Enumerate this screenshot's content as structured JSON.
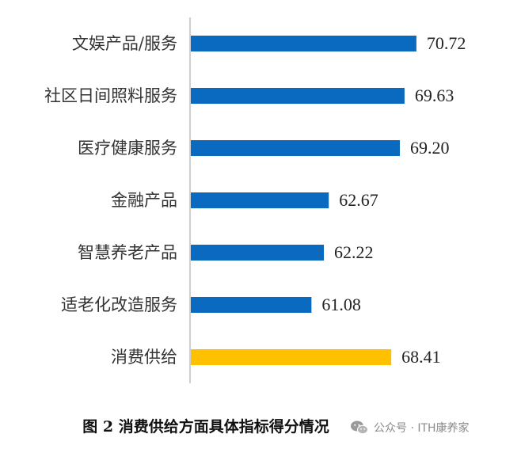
{
  "chart_data": {
    "type": "bar",
    "orientation": "horizontal",
    "categories": [
      "文娱产品/服务",
      "社区日间照料服务",
      "医疗健康服务",
      "金融产品",
      "智慧养老产品",
      "适老化改造服务",
      "消费供给"
    ],
    "values": [
      70.72,
      69.63,
      69.2,
      62.67,
      62.22,
      61.08,
      68.41
    ],
    "value_labels": [
      "70.72",
      "69.63",
      "69.20",
      "62.67",
      "62.22",
      "61.08",
      "68.41"
    ],
    "bar_colors": [
      "#0A6ABF",
      "#0A6ABF",
      "#0A6ABF",
      "#0A6ABF",
      "#0A6ABF",
      "#0A6ABF",
      "#FFC000"
    ],
    "xlim": [
      50,
      72.6
    ],
    "grid": false,
    "legend": "none",
    "title": "",
    "xlabel": "",
    "ylabel": ""
  },
  "caption": "图 2  消费供给方面具体指标得分情况",
  "watermark": {
    "icon": "wechat-icon",
    "text": "公众号 · ITH康养家"
  },
  "colors": {
    "axis": "#BFBFBF",
    "primary_bar": "#0A6ABF",
    "highlight_bar": "#FFC000"
  }
}
